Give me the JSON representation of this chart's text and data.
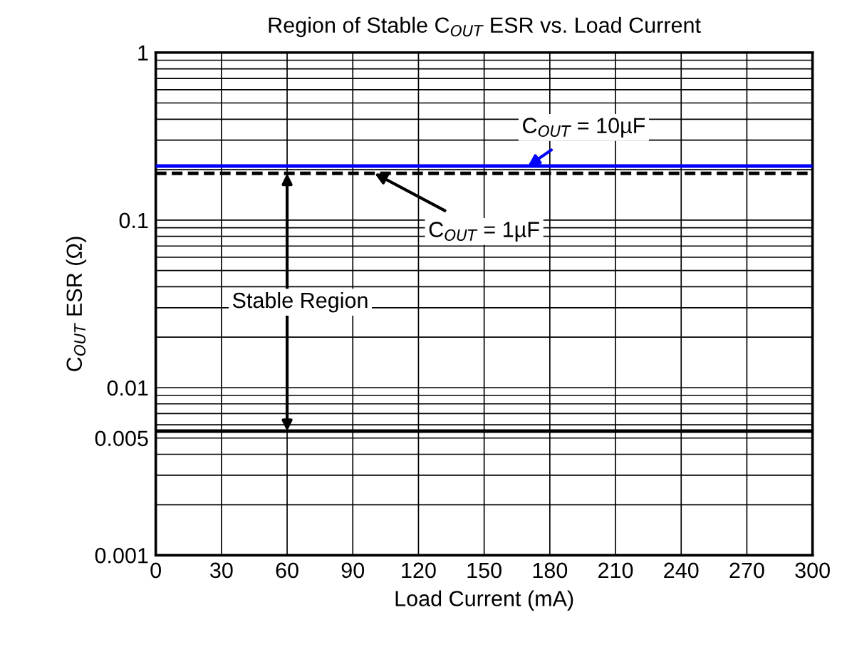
{
  "chart_data": {
    "type": "line",
    "title": "Region of Stable C$_{OUT}$ ESR vs. Load Current",
    "xlabel": "Load Current (mA)",
    "ylabel": "C$_{OUT}$ ESR (Ω)",
    "x": [
      0,
      300
    ],
    "series": [
      {
        "color": "#0000ff",
        "values": [
          0.21,
          0.21
        ],
        "line_style": "solid"
      },
      {
        "color": "#000000",
        "values": [
          0.19,
          0.19
        ],
        "line_style": "dashed"
      },
      {
        "color": "#000000",
        "values": [
          0.0055,
          0.0055
        ],
        "line_style": "solid"
      }
    ],
    "annotations": [
      {
        "text": "C$_{OUT}$ = 10µF",
        "x": 170,
        "y": 0.21
      },
      {
        "text": "C$_{OUT}$ = 1µF",
        "x": 100,
        "y": 0.19
      },
      "Stable Region"
    ],
    "log": "y",
    "xlim": [
      0,
      300
    ],
    "ylim": [
      0.001,
      1
    ],
    "xticks": [
      0,
      30,
      60,
      90,
      120,
      150,
      180,
      210,
      240,
      270,
      300
    ],
    "yticks": [
      0.001,
      0.005,
      0.01,
      0.1,
      1
    ],
    "grid": true,
    "legend": false
  }
}
